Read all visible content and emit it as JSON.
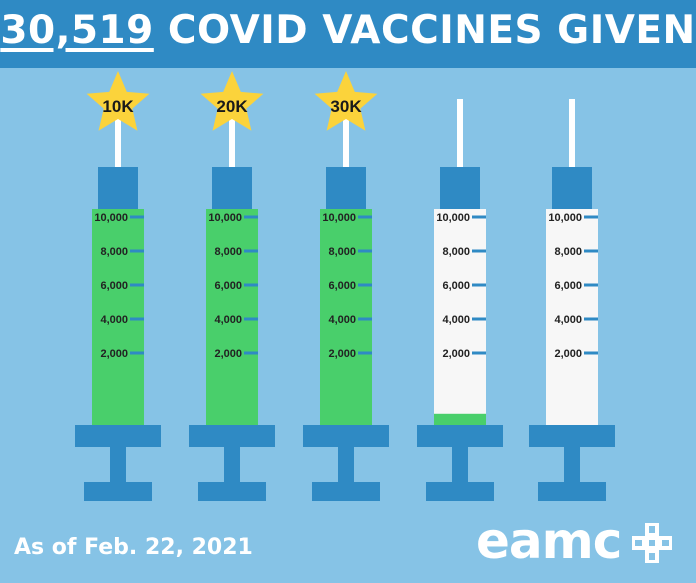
{
  "header": {
    "count": "30,519",
    "title_rest": " COVID VACCINES GIVEN"
  },
  "footer": {
    "date": "As of Feb. 22, 2021",
    "logo_text": "eamc"
  },
  "colors": {
    "background": "#86c3e6",
    "header": "#2f8ac4",
    "syringe": "#2f8ac4",
    "fill": "#49cf6b",
    "empty": "#f7f7f7",
    "star": "#fbd33b",
    "needle": "#ffffff"
  },
  "chart_data": {
    "type": "bar",
    "title": "30,519 COVID VACCINES GIVEN",
    "capacity": 10000,
    "ticks": [
      10000,
      8000,
      6000,
      4000,
      2000
    ],
    "tick_labels": [
      "10,000",
      "8,000",
      "6,000",
      "4,000",
      "2,000"
    ],
    "values": [
      10000,
      10000,
      10000,
      519,
      0
    ],
    "milestones": [
      "10K",
      "20K",
      "30K",
      "",
      ""
    ]
  }
}
